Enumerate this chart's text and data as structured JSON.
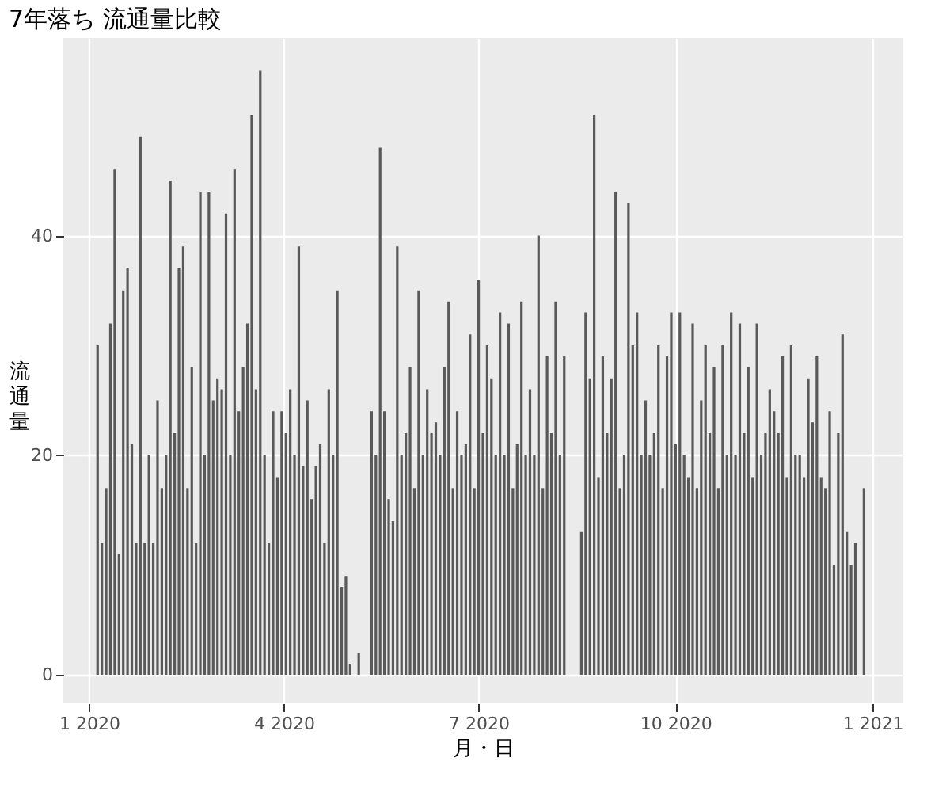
{
  "chart_data": {
    "type": "bar",
    "title": "7年落ち 流通量比較",
    "xlabel": "月・日",
    "ylabel": "流通量",
    "color": "#595959",
    "x": [
      "2020-01-05",
      "2020-01-07",
      "2020-01-09",
      "2020-01-11",
      "2020-01-13",
      "2020-01-15",
      "2020-01-17",
      "2020-01-19",
      "2020-01-21",
      "2020-01-23",
      "2020-01-25",
      "2020-01-27",
      "2020-01-29",
      "2020-01-31",
      "2020-02-02",
      "2020-02-04",
      "2020-02-06",
      "2020-02-08",
      "2020-02-10",
      "2020-02-12",
      "2020-02-14",
      "2020-02-16",
      "2020-02-18",
      "2020-02-20",
      "2020-02-22",
      "2020-02-24",
      "2020-02-26",
      "2020-02-28",
      "2020-03-01",
      "2020-03-03",
      "2020-03-05",
      "2020-03-07",
      "2020-03-09",
      "2020-03-11",
      "2020-03-13",
      "2020-03-15",
      "2020-03-17",
      "2020-03-19",
      "2020-03-21",
      "2020-03-23",
      "2020-03-25",
      "2020-03-27",
      "2020-03-29",
      "2020-03-31",
      "2020-04-02",
      "2020-04-04",
      "2020-04-06",
      "2020-04-08",
      "2020-04-10",
      "2020-04-12",
      "2020-04-14",
      "2020-04-16",
      "2020-04-18",
      "2020-04-20",
      "2020-04-22",
      "2020-04-24",
      "2020-04-26",
      "2020-04-28",
      "2020-04-30",
      "2020-05-02",
      "2020-05-06",
      "2020-05-12",
      "2020-05-14",
      "2020-05-16",
      "2020-05-18",
      "2020-05-20",
      "2020-05-22",
      "2020-05-24",
      "2020-05-26",
      "2020-05-28",
      "2020-05-30",
      "2020-06-01",
      "2020-06-03",
      "2020-06-05",
      "2020-06-07",
      "2020-06-09",
      "2020-06-11",
      "2020-06-13",
      "2020-06-15",
      "2020-06-17",
      "2020-06-19",
      "2020-06-21",
      "2020-06-23",
      "2020-06-25",
      "2020-06-27",
      "2020-06-29",
      "2020-07-01",
      "2020-07-03",
      "2020-07-05",
      "2020-07-07",
      "2020-07-09",
      "2020-07-11",
      "2020-07-13",
      "2020-07-15",
      "2020-07-17",
      "2020-07-19",
      "2020-07-21",
      "2020-07-23",
      "2020-07-25",
      "2020-07-27",
      "2020-07-29",
      "2020-07-31",
      "2020-08-02",
      "2020-08-04",
      "2020-08-06",
      "2020-08-08",
      "2020-08-10",
      "2020-08-18",
      "2020-08-20",
      "2020-08-22",
      "2020-08-24",
      "2020-08-26",
      "2020-08-28",
      "2020-08-30",
      "2020-09-01",
      "2020-09-03",
      "2020-09-05",
      "2020-09-07",
      "2020-09-09",
      "2020-09-11",
      "2020-09-13",
      "2020-09-15",
      "2020-09-17",
      "2020-09-19",
      "2020-09-21",
      "2020-09-23",
      "2020-09-25",
      "2020-09-27",
      "2020-09-29",
      "2020-10-01",
      "2020-10-03",
      "2020-10-05",
      "2020-10-07",
      "2020-10-09",
      "2020-10-11",
      "2020-10-13",
      "2020-10-15",
      "2020-10-17",
      "2020-10-19",
      "2020-10-21",
      "2020-10-23",
      "2020-10-25",
      "2020-10-27",
      "2020-10-29",
      "2020-10-31",
      "2020-11-02",
      "2020-11-04",
      "2020-11-06",
      "2020-11-08",
      "2020-11-10",
      "2020-11-12",
      "2020-11-14",
      "2020-11-16",
      "2020-11-18",
      "2020-11-20",
      "2020-11-22",
      "2020-11-24",
      "2020-11-26",
      "2020-11-28",
      "2020-11-30",
      "2020-12-02",
      "2020-12-04",
      "2020-12-06",
      "2020-12-08",
      "2020-12-10",
      "2020-12-12",
      "2020-12-14",
      "2020-12-16",
      "2020-12-18",
      "2020-12-20",
      "2020-12-22",
      "2020-12-24",
      "2020-12-28"
    ],
    "values": [
      30,
      12,
      17,
      32,
      46,
      11,
      35,
      37,
      21,
      12,
      49,
      12,
      20,
      12,
      25,
      17,
      20,
      45,
      22,
      37,
      39,
      17,
      28,
      12,
      44,
      20,
      44,
      25,
      27,
      26,
      42,
      20,
      46,
      24,
      28,
      32,
      51,
      26,
      55,
      20,
      12,
      24,
      18,
      24,
      22,
      26,
      20,
      39,
      19,
      25,
      16,
      19,
      21,
      12,
      26,
      20,
      35,
      8,
      9,
      1,
      2,
      24,
      20,
      48,
      24,
      16,
      14,
      39,
      20,
      22,
      28,
      17,
      35,
      20,
      26,
      22,
      23,
      20,
      28,
      34,
      17,
      24,
      20,
      21,
      31,
      17,
      36,
      22,
      30,
      27,
      20,
      33,
      20,
      32,
      17,
      21,
      34,
      20,
      26,
      20,
      40,
      17,
      29,
      22,
      34,
      20,
      29,
      13,
      33,
      27,
      51,
      18,
      29,
      22,
      27,
      44,
      17,
      20,
      43,
      30,
      33,
      20,
      25,
      20,
      22,
      30,
      17,
      29,
      33,
      21,
      33,
      20,
      18,
      32,
      17,
      25,
      30,
      22,
      28,
      17,
      30,
      20,
      33,
      20,
      32,
      22,
      28,
      18,
      32,
      20,
      22,
      26,
      24,
      22,
      29,
      18,
      30,
      20,
      20,
      18,
      27,
      23,
      29,
      18,
      17,
      24,
      10,
      22,
      31,
      13,
      10,
      12,
      17
    ],
    "xlim": [
      "2019-12-20",
      "2021-01-15"
    ],
    "xticks": [
      {
        "value": "2020-01-01",
        "label": "1 2020"
      },
      {
        "value": "2020-04-01",
        "label": "4 2020"
      },
      {
        "value": "2020-07-01",
        "label": "7 2020"
      },
      {
        "value": "2020-10-01",
        "label": "10 2020"
      },
      {
        "value": "2021-01-01",
        "label": "1 2021"
      }
    ],
    "ylim": [
      -2.6,
      58
    ],
    "yticks": [
      0,
      20,
      40
    ],
    "grid": true
  }
}
